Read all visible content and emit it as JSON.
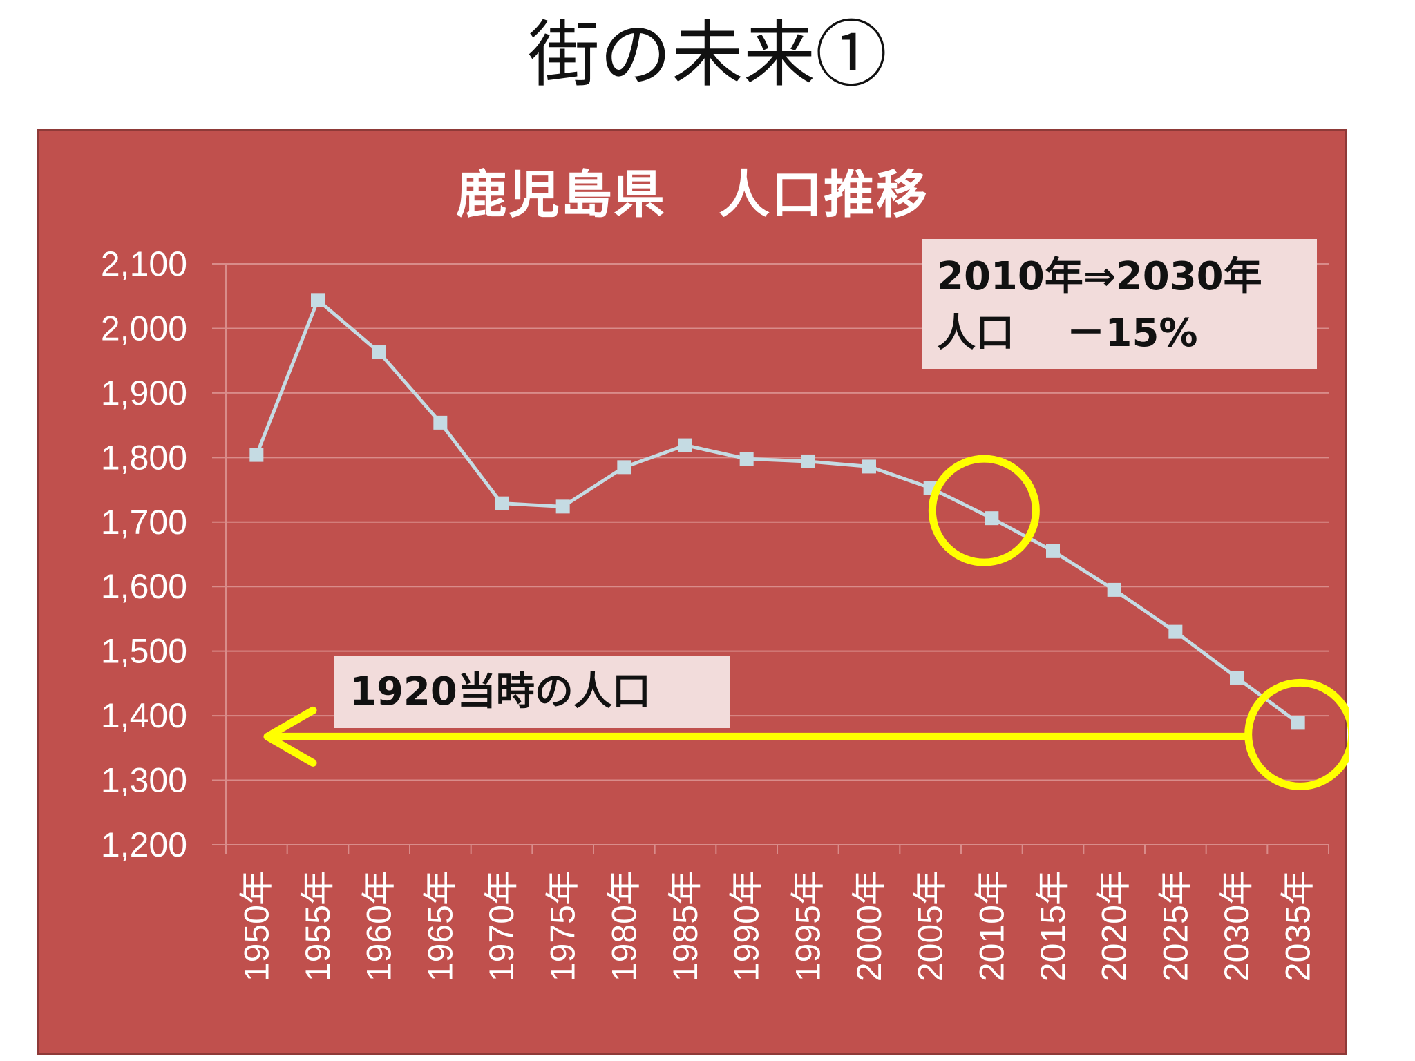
{
  "slide_title": "街の未来①",
  "colors": {
    "panel_bg": "#c0504d",
    "line": "#c5dbe3",
    "grid": "#d98c8a",
    "highlight": "#ffff00",
    "callout_bg": "#f2dcdb"
  },
  "callouts": {
    "change_line1": "2010年⇒2030年",
    "change_line2": "人口　 －15%",
    "historic": "1920当時の人口"
  },
  "chart_data": {
    "type": "line",
    "title": "鹿児島県　人口推移",
    "categories": [
      "1950年",
      "1955年",
      "1960年",
      "1965年",
      "1970年",
      "1975年",
      "1980年",
      "1985年",
      "1990年",
      "1995年",
      "2000年",
      "2005年",
      "2010年",
      "2015年",
      "2020年",
      "2025年",
      "2030年",
      "2035年"
    ],
    "series": [
      {
        "values": [
          1804,
          2044,
          1963,
          1854,
          1729,
          1724,
          1785,
          1819,
          1798,
          1794,
          1786,
          1753,
          1706,
          1655,
          1595,
          1530,
          1459,
          1389
        ]
      }
    ],
    "ylim": [
      1200,
      2100
    ],
    "yticks": [
      2100,
      2000,
      1900,
      1800,
      1700,
      1600,
      1500,
      1400,
      1300,
      1200
    ],
    "yticklabels": [
      "2,100",
      "2,000",
      "1,900",
      "1,800",
      "1,700",
      "1,600",
      "1,500",
      "1,400",
      "1,300",
      "1,200"
    ],
    "grid": true,
    "highlight_circles": [
      "2010年",
      "2035年"
    ],
    "arrow_to_value": 1389
  }
}
